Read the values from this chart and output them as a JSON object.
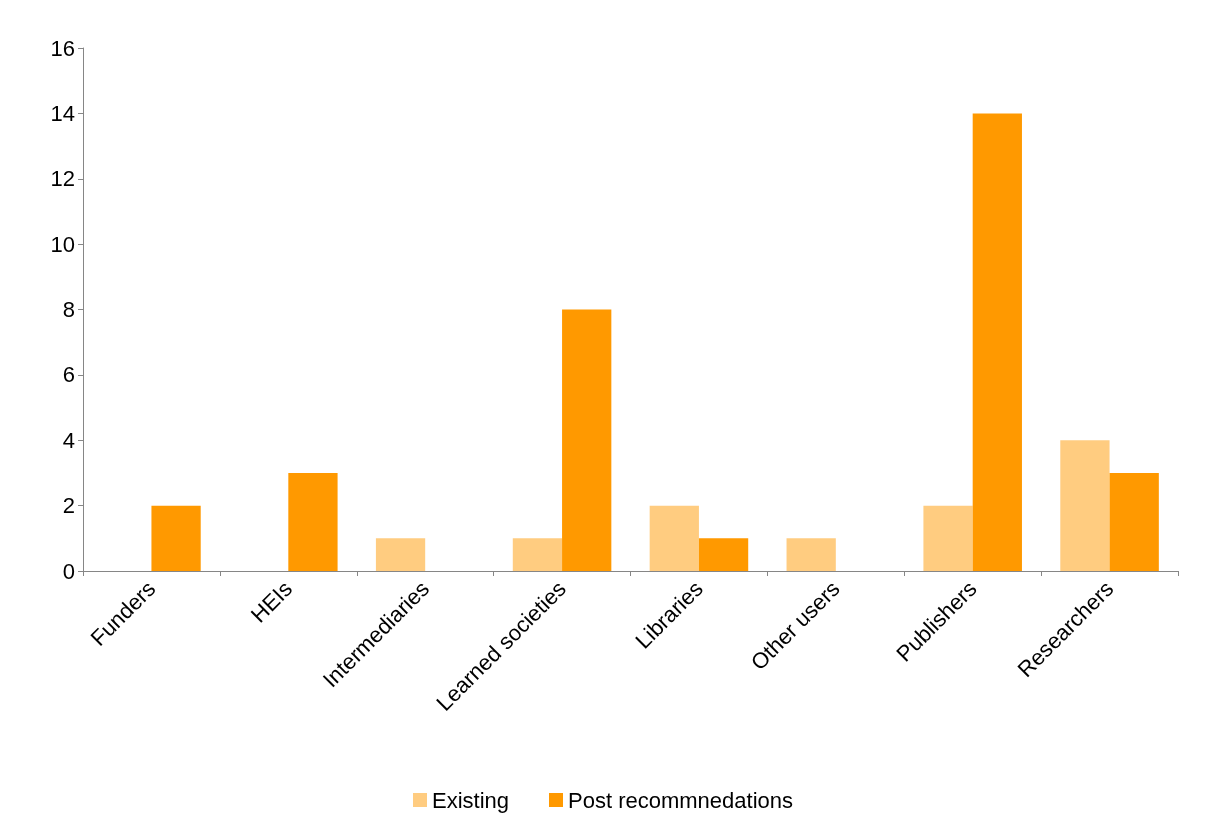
{
  "chart_data": {
    "type": "bar",
    "categories": [
      "Funders",
      "HEIs",
      "Intermediaries",
      "Learned societies",
      "Libraries",
      "Other users",
      "Publishers",
      "Researchers"
    ],
    "series": [
      {
        "name": "Existing",
        "color": "#ffcc80",
        "values": [
          0,
          0,
          1,
          1,
          2,
          1,
          2,
          4
        ]
      },
      {
        "name": "Post recommnedations",
        "color": "#ff9900",
        "values": [
          2,
          3,
          0,
          8,
          1,
          0,
          14,
          3
        ]
      }
    ],
    "ylim": [
      0,
      16
    ],
    "yticks": [
      0,
      2,
      4,
      6,
      8,
      10,
      12,
      14,
      16
    ],
    "grid": false,
    "legend": "bottom"
  }
}
